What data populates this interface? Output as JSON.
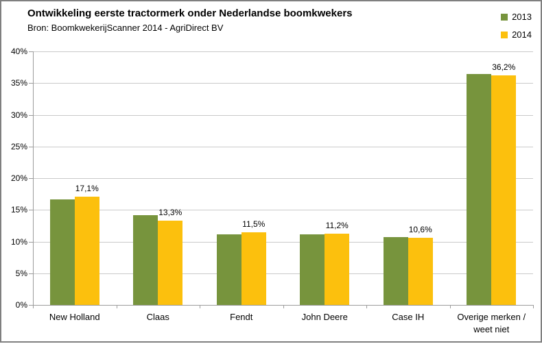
{
  "header": {
    "title": "Ontwikkeling eerste tractormerk onder Nederlandse boomkwekers",
    "source": "Bron: BoomkwekerijScanner 2014 - AgriDirect BV"
  },
  "colors": {
    "series_2013": "#77943d",
    "series_2014": "#fcc00d",
    "gridline": "#c9c9c9",
    "axis": "#9b9b9b",
    "frame_border": "#7f7f7f",
    "text": "#000000"
  },
  "legend": {
    "items": [
      {
        "label": "2013",
        "color": "#77943d"
      },
      {
        "label": "2014",
        "color": "#fcc00d"
      }
    ]
  },
  "chart_data": {
    "type": "bar",
    "title": "Ontwikkeling eerste tractormerk onder Nederlandse boomkwekers",
    "subtitle": "Bron: BoomkwekerijScanner 2014 - AgriDirect BV",
    "categories": [
      "New Holland",
      "Claas",
      "Fendt",
      "John Deere",
      "Case IH",
      "Overige merken / weet niet"
    ],
    "series": [
      {
        "name": "2013",
        "color": "#77943d",
        "values": [
          16.7,
          14.2,
          11.1,
          11.1,
          10.7,
          36.4
        ],
        "labels": [
          "",
          "",
          "",
          "",
          "",
          ""
        ],
        "labels_shown": false
      },
      {
        "name": "2014",
        "color": "#fcc00d",
        "values": [
          17.1,
          13.3,
          11.5,
          11.2,
          10.6,
          36.2
        ],
        "labels": [
          "17,1%",
          "13,3%",
          "11,5%",
          "11,2%",
          "10,6%",
          "36,2%"
        ],
        "labels_shown": true
      }
    ],
    "ylim": [
      0,
      40
    ],
    "ytick_step": 5,
    "ytick_labels": [
      "0%",
      "5%",
      "10%",
      "15%",
      "20%",
      "25%",
      "30%",
      "35%",
      "40%"
    ],
    "grid": true,
    "legend_position": "top-right"
  }
}
